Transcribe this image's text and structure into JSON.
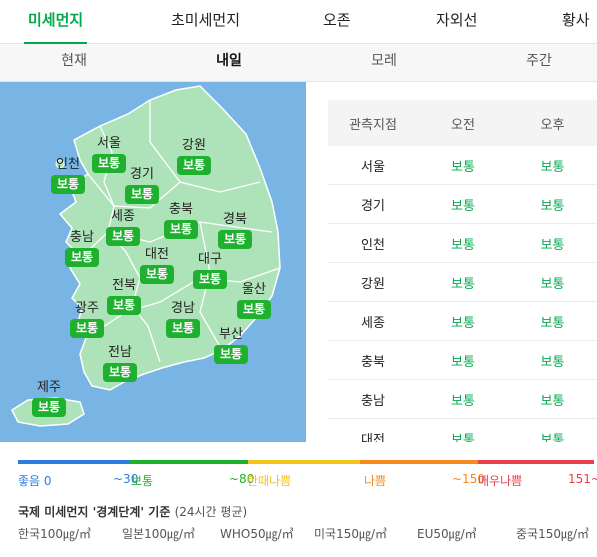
{
  "top_tabs": [
    "미세먼지",
    "초미세먼지",
    "오존",
    "자외선",
    "황사"
  ],
  "sub_tabs": [
    "현재",
    "내일",
    "모레",
    "주간"
  ],
  "map_regions": [
    {
      "name": "서울",
      "status": "보통"
    },
    {
      "name": "강원",
      "status": "보통"
    },
    {
      "name": "인천",
      "status": "보통"
    },
    {
      "name": "경기",
      "status": "보통"
    },
    {
      "name": "세종",
      "status": "보통"
    },
    {
      "name": "충북",
      "status": "보통"
    },
    {
      "name": "경북",
      "status": "보통"
    },
    {
      "name": "충남",
      "status": "보통"
    },
    {
      "name": "대전",
      "status": "보통"
    },
    {
      "name": "대구",
      "status": "보통"
    },
    {
      "name": "전북",
      "status": "보통"
    },
    {
      "name": "울산",
      "status": "보통"
    },
    {
      "name": "광주",
      "status": "보통"
    },
    {
      "name": "경남",
      "status": "보통"
    },
    {
      "name": "부산",
      "status": "보통"
    },
    {
      "name": "전남",
      "status": "보통"
    },
    {
      "name": "제주",
      "status": "보통"
    }
  ],
  "table": {
    "headers": [
      "관측지점",
      "오전",
      "오후"
    ],
    "rows": [
      [
        "서울",
        "보통",
        "보통"
      ],
      [
        "경기",
        "보통",
        "보통"
      ],
      [
        "인천",
        "보통",
        "보통"
      ],
      [
        "강원",
        "보통",
        "보통"
      ],
      [
        "세종",
        "보통",
        "보통"
      ],
      [
        "충북",
        "보통",
        "보통"
      ],
      [
        "충남",
        "보통",
        "보통"
      ],
      [
        "대전",
        "보통",
        "보통"
      ]
    ]
  },
  "scale": {
    "labels": [
      "좋음 0",
      "~30",
      "보통",
      "~80",
      "한때나쁨",
      "나쁨",
      "~150",
      "매우나쁨",
      "151~"
    ],
    "colors": {
      "good": "#2b7de0",
      "normal": "#1fb030",
      "temp_bad": "#f4c31c",
      "bad": "#f58a1f",
      "very_bad": "#e8414b",
      "gray": "#999999"
    }
  },
  "standard": {
    "title": "국제 미세먼지 '경계단계' 기준",
    "sub": "(24시간 평균)",
    "items": [
      "한국100㎍/㎥",
      "일본100㎍/㎥",
      "WHO50㎍/㎥",
      "미국150㎍/㎥",
      "EU50㎍/㎥",
      "중국150㎍/㎥"
    ]
  }
}
